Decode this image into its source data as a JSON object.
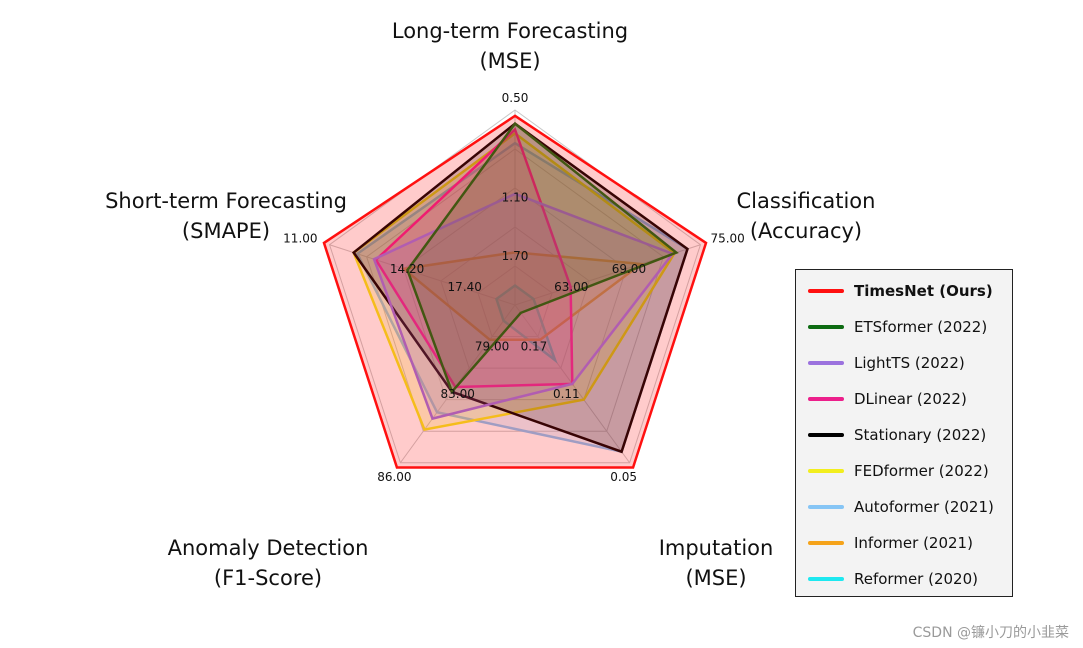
{
  "chart_data": {
    "type": "radar",
    "axes": [
      {
        "title_lines": [
          "Long-term Forecasting",
          "(MSE)"
        ],
        "ticks": [
          "0.50",
          "1.10",
          "1.70"
        ]
      },
      {
        "title_lines": [
          "Classification",
          "(Accuracy)"
        ],
        "ticks": [
          "75.00",
          "69.00",
          "63.00"
        ]
      },
      {
        "title_lines": [
          "Imputation",
          "(MSE)"
        ],
        "ticks": [
          "0.05",
          "0.11",
          "0.17"
        ]
      },
      {
        "title_lines": [
          "Anomaly Detection",
          "(F1-Score)"
        ],
        "ticks": [
          "86.00",
          "83.00",
          "79.00"
        ]
      },
      {
        "title_lines": [
          "Short-term Forecasting",
          "(SMAPE)"
        ],
        "ticks": [
          "11.00",
          "14.20",
          "17.40"
        ]
      }
    ],
    "normalized_scale": "0 = center, 1 = outer ring (best)",
    "series": [
      {
        "name": "Reformer (2020)",
        "color": "#1ee8f0",
        "values": [
          0.1,
          0.1,
          0.35,
          0.1,
          0.1
        ]
      },
      {
        "name": "Informer (2021)",
        "color": "#f5a31a",
        "values": [
          0.27,
          0.68,
          0.22,
          0.22,
          0.6
        ]
      },
      {
        "name": "Autoformer (2021)",
        "color": "#86c5f5",
        "values": [
          0.83,
          0.93,
          0.93,
          0.68,
          0.85
        ]
      },
      {
        "name": "FEDformer (2022)",
        "color": "#f2ee1e",
        "values": [
          0.88,
          0.86,
          0.6,
          0.79,
          0.87
        ]
      },
      {
        "name": "Stationary (2022)",
        "color": "#000000",
        "values": [
          0.93,
          0.93,
          0.93,
          0.55,
          0.87
        ]
      },
      {
        "name": "DLinear (2022)",
        "color": "#ec1f8b",
        "values": [
          0.9,
          0.3,
          0.5,
          0.52,
          0.75
        ]
      },
      {
        "name": "LightTS (2022)",
        "color": "#9b72de",
        "values": [
          0.57,
          0.85,
          0.5,
          0.72,
          0.76
        ]
      },
      {
        "name": "ETSformer (2022)",
        "color": "#0d6b12",
        "values": [
          0.93,
          0.87,
          0.05,
          0.55,
          0.58
        ]
      },
      {
        "name": "TimesNet (Ours)",
        "color": "#ff1010",
        "values": [
          0.97,
          1.03,
          1.03,
          1.03,
          1.03
        ]
      }
    ],
    "legend_order": [
      "TimesNet (Ours)",
      "ETSformer (2022)",
      "LightTS (2022)",
      "DLinear (2022)",
      "Stationary (2022)",
      "FEDformer (2022)",
      "Autoformer (2021)",
      "Informer (2021)",
      "Reformer (2020)"
    ],
    "legend_bold": "TimesNet (Ours)",
    "legend_position": "right"
  },
  "watermark": "CSDN @镰小刀的小韭菜"
}
